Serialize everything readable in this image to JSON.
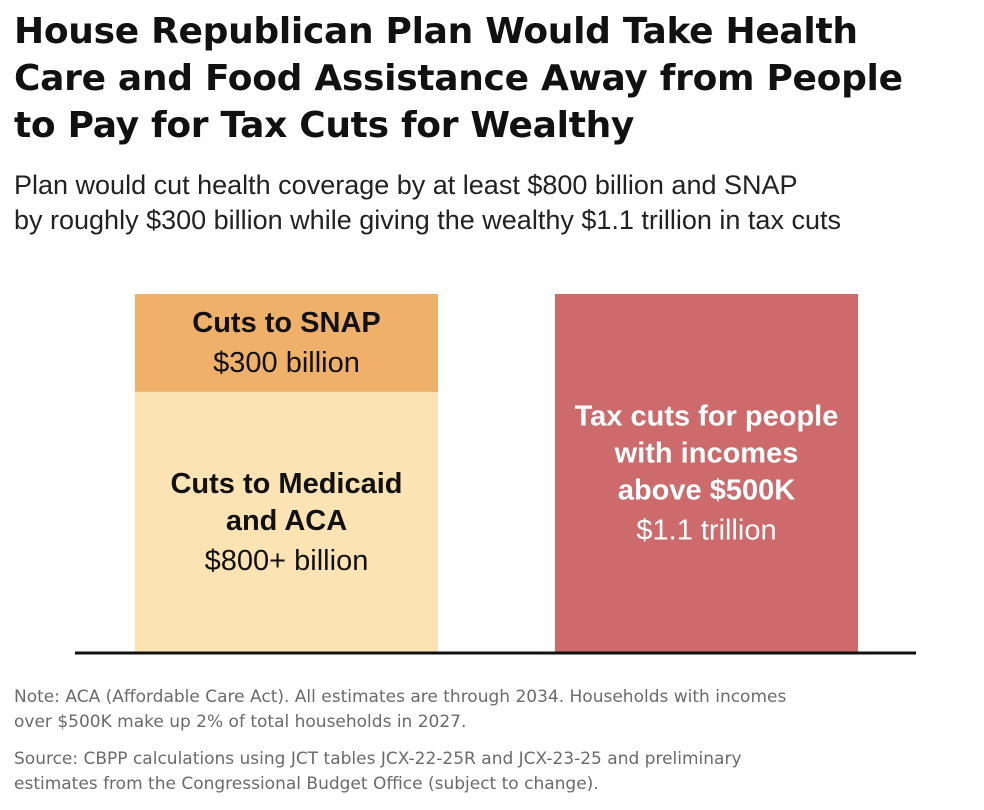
{
  "title_lines": [
    "House Republican Plan Would Take Health",
    "Care and Food Assistance Away from People",
    "to Pay for Tax Cuts for Wealthy"
  ],
  "subtitle_lines": [
    "Plan would cut health coverage by at least $800 billion and SNAP",
    "by roughly $300 billion while giving the wealthy $1.1 trillion in tax cuts"
  ],
  "colors": {
    "snap": "#efb16a",
    "medicaid": "#fce3b4",
    "tax": "#cc6a6c",
    "baseline": "#111111",
    "note_text": "#6b6b6b"
  },
  "chart_data": {
    "type": "bar",
    "stacked": true,
    "unit": "billions of dollars",
    "categories": [
      "",
      ""
    ],
    "series": [
      {
        "name": "Cuts to Medicaid and ACA",
        "values": [
          800,
          0
        ],
        "labels": [
          [
            "Cuts to Medicaid",
            "and ACA"
          ],
          []
        ],
        "value_labels": [
          "$800+ billion",
          ""
        ],
        "color": "#fce3b4"
      },
      {
        "name": "Cuts to SNAP",
        "values": [
          300,
          0
        ],
        "labels": [
          [
            "Cuts to SNAP"
          ],
          []
        ],
        "value_labels": [
          "$300 billion",
          ""
        ],
        "color": "#efb16a"
      },
      {
        "name": "Tax cuts for people with incomes above $500K",
        "values": [
          0,
          1100
        ],
        "labels": [
          [],
          [
            "Tax cuts for people",
            "with incomes",
            "above $500K"
          ]
        ],
        "value_labels": [
          "",
          "$1.1 trillion"
        ],
        "color": "#cc6a6c"
      }
    ],
    "ylim": [
      0,
      1100
    ],
    "grid": false,
    "legend": "none"
  },
  "note_lines": [
    "Note: ACA (Affordable Care Act). All estimates are through 2034. Households with incomes",
    "over $500K make up 2% of total households in 2027."
  ],
  "source_lines": [
    "Source: CBPP calculations using JCT tables JCX-22-25R and JCX-23-25 and preliminary",
    "estimates from the Congressional Budget Office (subject to change)."
  ]
}
